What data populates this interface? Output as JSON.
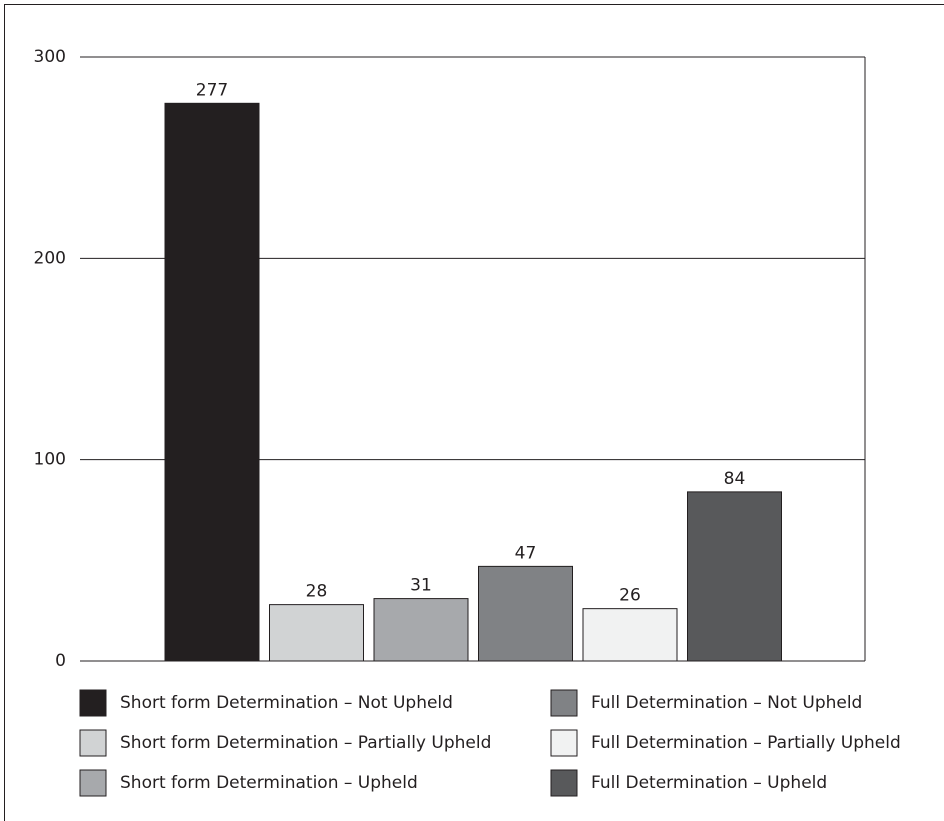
{
  "chart_data": {
    "type": "bar",
    "series": [
      {
        "name": "Short form Determination – Not Upheld",
        "color": "#231f20",
        "values": [
          277
        ]
      },
      {
        "name": "Short form Determination – Partially Upheld",
        "color": "#d1d3d4",
        "values": [
          28
        ]
      },
      {
        "name": "Short form Determination – Upheld",
        "color": "#a7a9ac",
        "values": [
          31
        ]
      },
      {
        "name": "Full Determination – Not Upheld",
        "color": "#808285",
        "values": [
          47
        ]
      },
      {
        "name": "Full Determination – Partially Upheld",
        "color": "#f1f2f2",
        "values": [
          26
        ]
      },
      {
        "name": "Full Determination – Upheld",
        "color": "#58595b",
        "values": [
          84
        ]
      }
    ],
    "ylim": [
      0,
      300
    ],
    "yticks": [
      0,
      100,
      200,
      300
    ],
    "grid": true,
    "legend": "bottom"
  }
}
